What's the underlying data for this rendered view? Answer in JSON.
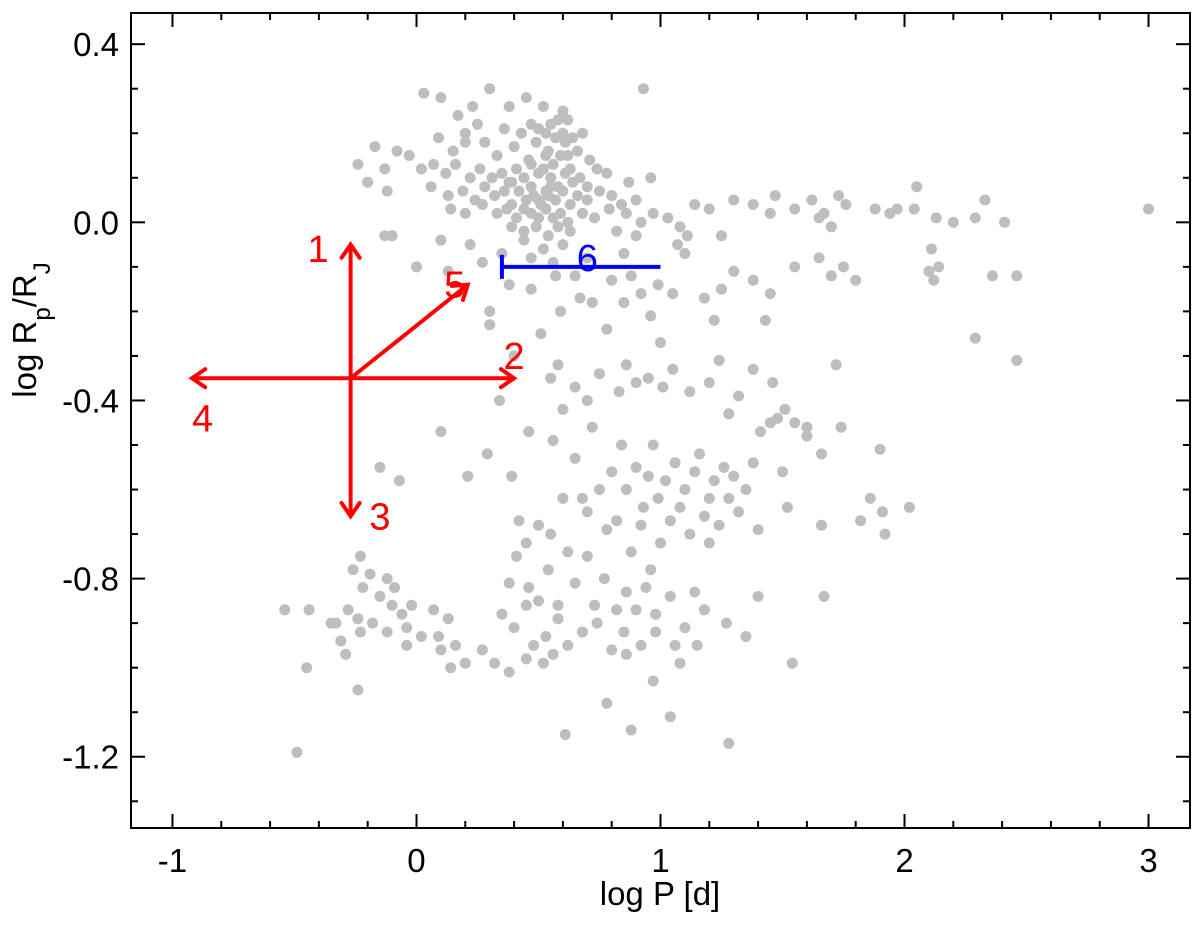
{
  "chart_data": {
    "type": "scatter",
    "title": "",
    "xlabel": "log P [d]",
    "ylabel": {
      "main": "log R",
      "sub1": "p",
      "mid": "/R",
      "sub2": "J"
    },
    "xlim": [
      -1.17,
      3.17
    ],
    "ylim": [
      -1.36,
      0.47
    ],
    "x_ticks": [
      {
        "value": -1,
        "label": "-1"
      },
      {
        "value": 0,
        "label": "0"
      },
      {
        "value": 1,
        "label": "1"
      },
      {
        "value": 2,
        "label": "2"
      },
      {
        "value": 3,
        "label": "3"
      }
    ],
    "y_ticks": [
      {
        "value": 0.4,
        "label": "0.4"
      },
      {
        "value": 0.0,
        "label": "0.0"
      },
      {
        "value": -0.4,
        "label": "-0.4"
      },
      {
        "value": -0.8,
        "label": "-0.8"
      },
      {
        "value": -1.2,
        "label": "-1.2"
      }
    ],
    "x_minor_step": 0.2,
    "y_minor_step": 0.1,
    "grid": false,
    "colors": {
      "points": "#bebebe",
      "arrows": "#ff0000",
      "bar": "#0000ff"
    },
    "points": [
      [
        0.03,
        0.29
      ],
      [
        0.1,
        0.28
      ],
      [
        0.17,
        0.24
      ],
      [
        0.23,
        0.26
      ],
      [
        0.3,
        0.3
      ],
      [
        0.38,
        0.26
      ],
      [
        0.45,
        0.28
      ],
      [
        0.52,
        0.26
      ],
      [
        0.6,
        0.25
      ],
      [
        0.93,
        0.3
      ],
      [
        0.09,
        0.19
      ],
      [
        0.15,
        0.16
      ],
      [
        0.2,
        0.2
      ],
      [
        0.25,
        0.22
      ],
      [
        0.28,
        0.18
      ],
      [
        0.33,
        0.15
      ],
      [
        0.36,
        0.21
      ],
      [
        0.4,
        0.17
      ],
      [
        0.43,
        0.2
      ],
      [
        0.46,
        0.14
      ],
      [
        0.47,
        0.22
      ],
      [
        0.49,
        0.18
      ],
      [
        0.5,
        0.21
      ],
      [
        0.52,
        0.12
      ],
      [
        0.53,
        0.2
      ],
      [
        0.54,
        0.16
      ],
      [
        0.55,
        0.22
      ],
      [
        0.56,
        0.13
      ],
      [
        0.57,
        0.19
      ],
      [
        0.58,
        0.23
      ],
      [
        0.59,
        0.15
      ],
      [
        0.6,
        0.2
      ],
      [
        0.61,
        0.18
      ],
      [
        0.62,
        0.23
      ],
      [
        0.63,
        0.12
      ],
      [
        0.64,
        0.19
      ],
      [
        0.66,
        0.16
      ],
      [
        0.68,
        0.2
      ],
      [
        0.71,
        0.14
      ],
      [
        0.74,
        0.12
      ],
      [
        -0.24,
        0.13
      ],
      [
        -0.17,
        0.17
      ],
      [
        -0.13,
        0.12
      ],
      [
        -0.08,
        0.16
      ],
      [
        -0.03,
        0.15
      ],
      [
        0.02,
        0.12
      ],
      [
        0.07,
        0.13
      ],
      [
        0.12,
        0.11
      ],
      [
        0.16,
        0.13
      ],
      [
        0.22,
        0.1
      ],
      [
        0.26,
        0.12
      ],
      [
        0.31,
        0.1
      ],
      [
        0.35,
        0.11
      ],
      [
        0.38,
        0.09
      ],
      [
        0.41,
        0.12
      ],
      [
        0.44,
        0.1
      ],
      [
        0.47,
        0.08
      ],
      [
        0.5,
        0.11
      ],
      [
        0.53,
        0.07
      ],
      [
        0.55,
        0.1
      ],
      [
        0.58,
        0.08
      ],
      [
        0.61,
        0.11
      ],
      [
        0.64,
        0.09
      ],
      [
        0.67,
        0.1
      ],
      [
        0.7,
        0.08
      ],
      [
        0.78,
        0.11
      ],
      [
        0.87,
        0.09
      ],
      [
        0.96,
        0.1
      ],
      [
        -0.2,
        0.09
      ],
      [
        -0.12,
        0.07
      ],
      [
        0.06,
        0.08
      ],
      [
        0.13,
        0.06
      ],
      [
        0.19,
        0.07
      ],
      [
        0.24,
        0.05
      ],
      [
        0.28,
        0.08
      ],
      [
        0.32,
        0.06
      ],
      [
        0.36,
        0.07
      ],
      [
        0.39,
        0.04
      ],
      [
        0.42,
        0.07
      ],
      [
        0.45,
        0.05
      ],
      [
        0.48,
        0.06
      ],
      [
        0.51,
        0.04
      ],
      [
        0.54,
        0.06
      ],
      [
        0.57,
        0.05
      ],
      [
        0.6,
        0.07
      ],
      [
        0.63,
        0.04
      ],
      [
        0.66,
        0.06
      ],
      [
        0.7,
        0.05
      ],
      [
        0.75,
        0.07
      ],
      [
        0.8,
        0.06
      ],
      [
        0.84,
        0.04
      ],
      [
        0.9,
        0.05
      ],
      [
        0.14,
        0.03
      ],
      [
        0.2,
        0.02
      ],
      [
        0.27,
        0.04
      ],
      [
        0.33,
        0.02
      ],
      [
        0.37,
        0.03
      ],
      [
        0.41,
        0.01
      ],
      [
        0.44,
        0.03
      ],
      [
        0.47,
        0.02
      ],
      [
        0.5,
        0.01
      ],
      [
        0.53,
        0.03
      ],
      [
        0.56,
        0.01
      ],
      [
        0.59,
        0.02
      ],
      [
        0.62,
        0.0
      ],
      [
        0.68,
        0.02
      ],
      [
        0.73,
        0.01
      ],
      [
        0.79,
        0.03
      ],
      [
        0.86,
        0.02
      ],
      [
        0.92,
        0.0
      ],
      [
        0.97,
        0.02
      ],
      [
        1.03,
        0.01
      ],
      [
        0.39,
        -0.01
      ],
      [
        0.44,
        -0.02
      ],
      [
        0.49,
        -0.01
      ],
      [
        0.54,
        -0.03
      ],
      [
        0.58,
        -0.01
      ],
      [
        0.63,
        -0.02
      ],
      [
        0.82,
        -0.02
      ],
      [
        0.9,
        -0.03
      ],
      [
        0.44,
        -0.04
      ],
      [
        0.52,
        -0.06
      ],
      [
        0.6,
        -0.05
      ],
      [
        1.14,
        0.04
      ],
      [
        1.2,
        0.03
      ],
      [
        1.3,
        0.05
      ],
      [
        1.38,
        0.04
      ],
      [
        1.45,
        0.02
      ],
      [
        1.47,
        0.06
      ],
      [
        1.55,
        0.03
      ],
      [
        1.62,
        0.05
      ],
      [
        1.67,
        0.02
      ],
      [
        1.73,
        0.06
      ],
      [
        1.76,
        0.04
      ],
      [
        1.97,
        0.03
      ],
      [
        2.04,
        0.03
      ],
      [
        2.05,
        0.08
      ],
      [
        2.13,
        0.01
      ],
      [
        2.29,
        0.01
      ],
      [
        2.33,
        0.05
      ],
      [
        2.41,
        0.0
      ],
      [
        3.0,
        0.03
      ],
      [
        1.7,
        -0.01
      ],
      [
        1.65,
        0.01
      ],
      [
        1.25,
        -0.03
      ],
      [
        1.08,
        -0.01
      ],
      [
        1.11,
        -0.03
      ],
      [
        1.88,
        0.03
      ],
      [
        1.94,
        0.02
      ],
      [
        2.2,
        0.0
      ],
      [
        -0.1,
        -0.03
      ],
      [
        0.1,
        -0.04
      ],
      [
        0.22,
        -0.05
      ],
      [
        0.27,
        -0.09
      ],
      [
        0.35,
        -0.07
      ],
      [
        0.47,
        -0.08
      ],
      [
        0.56,
        -0.09
      ],
      [
        0.7,
        -0.08
      ],
      [
        0.85,
        -0.07
      ],
      [
        1.07,
        -0.05
      ],
      [
        0.38,
        -0.14
      ],
      [
        0.47,
        -0.15
      ],
      [
        0.59,
        -0.2
      ],
      [
        0.65,
        -0.12
      ],
      [
        0.57,
        -0.12
      ],
      [
        0.67,
        -0.17
      ],
      [
        0.72,
        -0.18
      ],
      [
        0.78,
        -0.24
      ],
      [
        0.8,
        -0.13
      ],
      [
        0.85,
        -0.18
      ],
      [
        0.88,
        -0.12
      ],
      [
        0.92,
        -0.16
      ],
      [
        0.96,
        -0.21
      ],
      [
        0.99,
        -0.14
      ],
      [
        1.0,
        -0.27
      ],
      [
        1.05,
        -0.16
      ],
      [
        1.1,
        -0.07
      ],
      [
        1.18,
        -0.17
      ],
      [
        1.22,
        -0.22
      ],
      [
        1.25,
        -0.15
      ],
      [
        1.3,
        -0.11
      ],
      [
        1.38,
        -0.13
      ],
      [
        1.43,
        -0.22
      ],
      [
        1.45,
        -0.16
      ],
      [
        1.55,
        -0.1
      ],
      [
        1.65,
        -0.08
      ],
      [
        1.7,
        -0.12
      ],
      [
        1.75,
        -0.1
      ],
      [
        1.8,
        -0.13
      ],
      [
        2.11,
        -0.06
      ],
      [
        2.1,
        -0.11
      ],
      [
        2.12,
        -0.13
      ],
      [
        2.14,
        -0.1
      ],
      [
        2.36,
        -0.12
      ],
      [
        2.46,
        -0.12
      ],
      [
        0.51,
        -0.25
      ],
      [
        0.58,
        -0.32
      ],
      [
        0.6,
        -0.42
      ],
      [
        0.65,
        -0.37
      ],
      [
        0.7,
        -0.4
      ],
      [
        0.75,
        -0.34
      ],
      [
        0.83,
        -0.38
      ],
      [
        0.86,
        -0.32
      ],
      [
        0.9,
        -0.36
      ],
      [
        0.95,
        -0.35
      ],
      [
        1.01,
        -0.37
      ],
      [
        1.05,
        -0.33
      ],
      [
        1.12,
        -0.38
      ],
      [
        1.2,
        -0.36
      ],
      [
        1.24,
        -0.31
      ],
      [
        1.28,
        -0.43
      ],
      [
        1.32,
        -0.39
      ],
      [
        1.38,
        -0.33
      ],
      [
        1.46,
        -0.36
      ],
      [
        1.51,
        -0.42
      ],
      [
        1.6,
        -0.48
      ],
      [
        1.72,
        -0.32
      ],
      [
        2.29,
        -0.26
      ],
      [
        2.46,
        -0.31
      ],
      [
        0.1,
        -0.47
      ],
      [
        0.21,
        -0.57
      ],
      [
        0.29,
        -0.52
      ],
      [
        0.34,
        -0.4
      ],
      [
        0.46,
        -0.47
      ],
      [
        0.39,
        -0.57
      ],
      [
        0.55,
        -0.35
      ],
      [
        0.56,
        -0.49
      ],
      [
        0.6,
        -0.62
      ],
      [
        0.65,
        -0.53
      ],
      [
        0.7,
        -0.65
      ],
      [
        0.72,
        -0.46
      ],
      [
        0.75,
        -0.6
      ],
      [
        0.8,
        -0.56
      ],
      [
        0.82,
        -0.67
      ],
      [
        0.84,
        -0.5
      ],
      [
        0.86,
        -0.6
      ],
      [
        0.9,
        -0.55
      ],
      [
        0.93,
        -0.64
      ],
      [
        0.95,
        -0.57
      ],
      [
        0.97,
        -0.5
      ],
      [
        0.99,
        -0.62
      ],
      [
        1.0,
        -0.72
      ],
      [
        1.02,
        -0.58
      ],
      [
        1.04,
        -0.67
      ],
      [
        1.06,
        -0.54
      ],
      [
        1.08,
        -0.64
      ],
      [
        1.1,
        -0.6
      ],
      [
        1.12,
        -0.7
      ],
      [
        1.14,
        -0.56
      ],
      [
        1.16,
        -0.52
      ],
      [
        1.18,
        -0.66
      ],
      [
        1.2,
        -0.62
      ],
      [
        1.22,
        -0.58
      ],
      [
        1.24,
        -0.68
      ],
      [
        1.26,
        -0.55
      ],
      [
        1.28,
        -0.62
      ],
      [
        1.3,
        -0.57
      ],
      [
        1.32,
        -0.65
      ],
      [
        1.35,
        -0.6
      ],
      [
        1.38,
        -0.54
      ],
      [
        1.41,
        -0.47
      ],
      [
        1.45,
        -0.45
      ],
      [
        1.48,
        -0.44
      ],
      [
        1.5,
        -0.56
      ],
      [
        1.52,
        -0.64
      ],
      [
        1.55,
        -0.45
      ],
      [
        1.6,
        -0.46
      ],
      [
        1.66,
        -0.52
      ],
      [
        1.74,
        -0.46
      ],
      [
        1.86,
        -0.62
      ],
      [
        1.9,
        -0.51
      ],
      [
        1.91,
        -0.65
      ],
      [
        1.92,
        -0.7
      ],
      [
        2.02,
        -0.64
      ],
      [
        1.66,
        -0.68
      ],
      [
        1.82,
        -0.67
      ],
      [
        1.4,
        -0.69
      ],
      [
        1.2,
        -0.72
      ],
      [
        0.42,
        -0.67
      ],
      [
        0.5,
        -0.68
      ],
      [
        0.45,
        -0.72
      ],
      [
        0.55,
        -0.7
      ],
      [
        0.62,
        -0.74
      ],
      [
        0.68,
        -0.62
      ],
      [
        0.78,
        -0.69
      ],
      [
        0.88,
        -0.74
      ],
      [
        0.96,
        -0.78
      ],
      [
        0.92,
        -0.68
      ],
      [
        0.41,
        -0.75
      ],
      [
        0.38,
        -0.81
      ],
      [
        0.46,
        -0.82
      ],
      [
        0.5,
        -0.85
      ],
      [
        0.54,
        -0.78
      ],
      [
        0.58,
        -0.86
      ],
      [
        0.65,
        -0.81
      ],
      [
        0.7,
        -0.75
      ],
      [
        0.73,
        -0.86
      ],
      [
        0.77,
        -0.8
      ],
      [
        0.82,
        -0.87
      ],
      [
        0.86,
        -0.83
      ],
      [
        0.9,
        -0.87
      ],
      [
        0.94,
        -0.82
      ],
      [
        0.98,
        -0.88
      ],
      [
        1.04,
        -0.84
      ],
      [
        1.14,
        -0.83
      ],
      [
        1.18,
        -0.87
      ],
      [
        1.27,
        -0.9
      ],
      [
        1.4,
        -0.84
      ],
      [
        1.67,
        -0.84
      ],
      [
        0.35,
        -0.88
      ],
      [
        0.4,
        -0.91
      ],
      [
        0.45,
        -0.86
      ],
      [
        0.48,
        -0.95
      ],
      [
        0.53,
        -0.93
      ],
      [
        0.58,
        -0.89
      ],
      [
        0.62,
        -0.95
      ],
      [
        0.68,
        -0.92
      ],
      [
        0.74,
        -0.9
      ],
      [
        0.8,
        -0.96
      ],
      [
        0.85,
        -0.92
      ],
      [
        0.92,
        -0.95
      ],
      [
        0.98,
        -0.92
      ],
      [
        1.06,
        -0.95
      ],
      [
        1.1,
        -0.91
      ],
      [
        1.15,
        -0.95
      ],
      [
        1.35,
        -0.93
      ],
      [
        0.27,
        -0.96
      ],
      [
        0.32,
        -0.99
      ],
      [
        0.38,
        -1.01
      ],
      [
        0.45,
        -0.98
      ],
      [
        0.52,
        -0.99
      ],
      [
        0.56,
        -0.97
      ],
      [
        0.86,
        -0.97
      ],
      [
        0.97,
        -1.03
      ],
      [
        1.08,
        -0.99
      ],
      [
        1.54,
        -0.99
      ],
      [
        0.78,
        -1.08
      ],
      [
        0.61,
        -1.15
      ],
      [
        0.88,
        -1.14
      ],
      [
        1.04,
        -1.11
      ],
      [
        1.28,
        -1.17
      ],
      [
        -0.26,
        -0.78
      ],
      [
        -0.19,
        -0.79
      ],
      [
        -0.12,
        -0.8
      ],
      [
        -0.09,
        -0.82
      ],
      [
        -0.22,
        -0.82
      ],
      [
        -0.15,
        -0.84
      ],
      [
        -0.1,
        -0.86
      ],
      [
        -0.06,
        -0.88
      ],
      [
        -0.02,
        -0.86
      ],
      [
        0.07,
        -0.87
      ],
      [
        0.13,
        -0.89
      ],
      [
        -0.28,
        -0.87
      ],
      [
        -0.24,
        -0.89
      ],
      [
        -0.18,
        -0.9
      ],
      [
        -0.12,
        -0.92
      ],
      [
        -0.04,
        -0.91
      ],
      [
        0.02,
        -0.93
      ],
      [
        0.09,
        -0.93
      ],
      [
        0.16,
        -0.95
      ],
      [
        0.2,
        -0.99
      ],
      [
        0.1,
        -0.96
      ],
      [
        0.14,
        -1.0
      ],
      [
        -0.04,
        -0.95
      ],
      [
        -0.23,
        -0.92
      ],
      [
        -0.35,
        -0.9
      ],
      [
        -0.33,
        -0.9
      ],
      [
        -0.31,
        -0.94
      ],
      [
        -0.29,
        -0.97
      ],
      [
        -0.44,
        -0.87
      ],
      [
        -0.54,
        -0.87
      ],
      [
        -0.45,
        -1.0
      ],
      [
        -0.24,
        -1.05
      ],
      [
        -0.49,
        -1.19
      ],
      [
        -0.23,
        -0.75
      ],
      [
        -0.07,
        -0.58
      ],
      [
        -0.15,
        -0.55
      ],
      [
        0.4,
        -0.3
      ],
      [
        0.3,
        -0.23
      ],
      [
        0.13,
        -0.11
      ],
      [
        0.0,
        -0.1
      ],
      [
        0.3,
        -0.2
      ],
      [
        -0.13,
        -0.03
      ],
      [
        0.2,
        0.18
      ],
      [
        0.39,
        0.09
      ],
      [
        0.53,
        0.15
      ],
      [
        0.47,
        0.13
      ],
      [
        0.55,
        0.08
      ],
      [
        0.62,
        0.15
      ],
      [
        0.5,
        0.05
      ]
    ],
    "arrow_origin": [
      -0.27,
      -0.35
    ],
    "arrows": [
      {
        "id": "1",
        "label": "1",
        "to": [
          -0.27,
          -0.05
        ],
        "label_at": [
          -0.36,
          -0.06
        ]
      },
      {
        "id": "2",
        "label": "2",
        "to": [
          0.4,
          -0.35
        ],
        "label_at": [
          0.4,
          -0.3
        ]
      },
      {
        "id": "3",
        "label": "3",
        "to": [
          -0.27,
          -0.66
        ],
        "label_at": [
          -0.15,
          -0.66
        ]
      },
      {
        "id": "4",
        "label": "4",
        "to": [
          -0.92,
          -0.35
        ],
        "label_at": [
          -0.92,
          -0.44
        ]
      },
      {
        "id": "5",
        "label": "5",
        "to": [
          0.21,
          -0.14
        ],
        "label_at": [
          0.2,
          -0.14
        ]
      }
    ],
    "bar": {
      "id": "6",
      "label": "6",
      "x_start": 0.35,
      "x_end": 1.0,
      "y": -0.1,
      "label_at": [
        0.7,
        -0.08
      ]
    }
  }
}
